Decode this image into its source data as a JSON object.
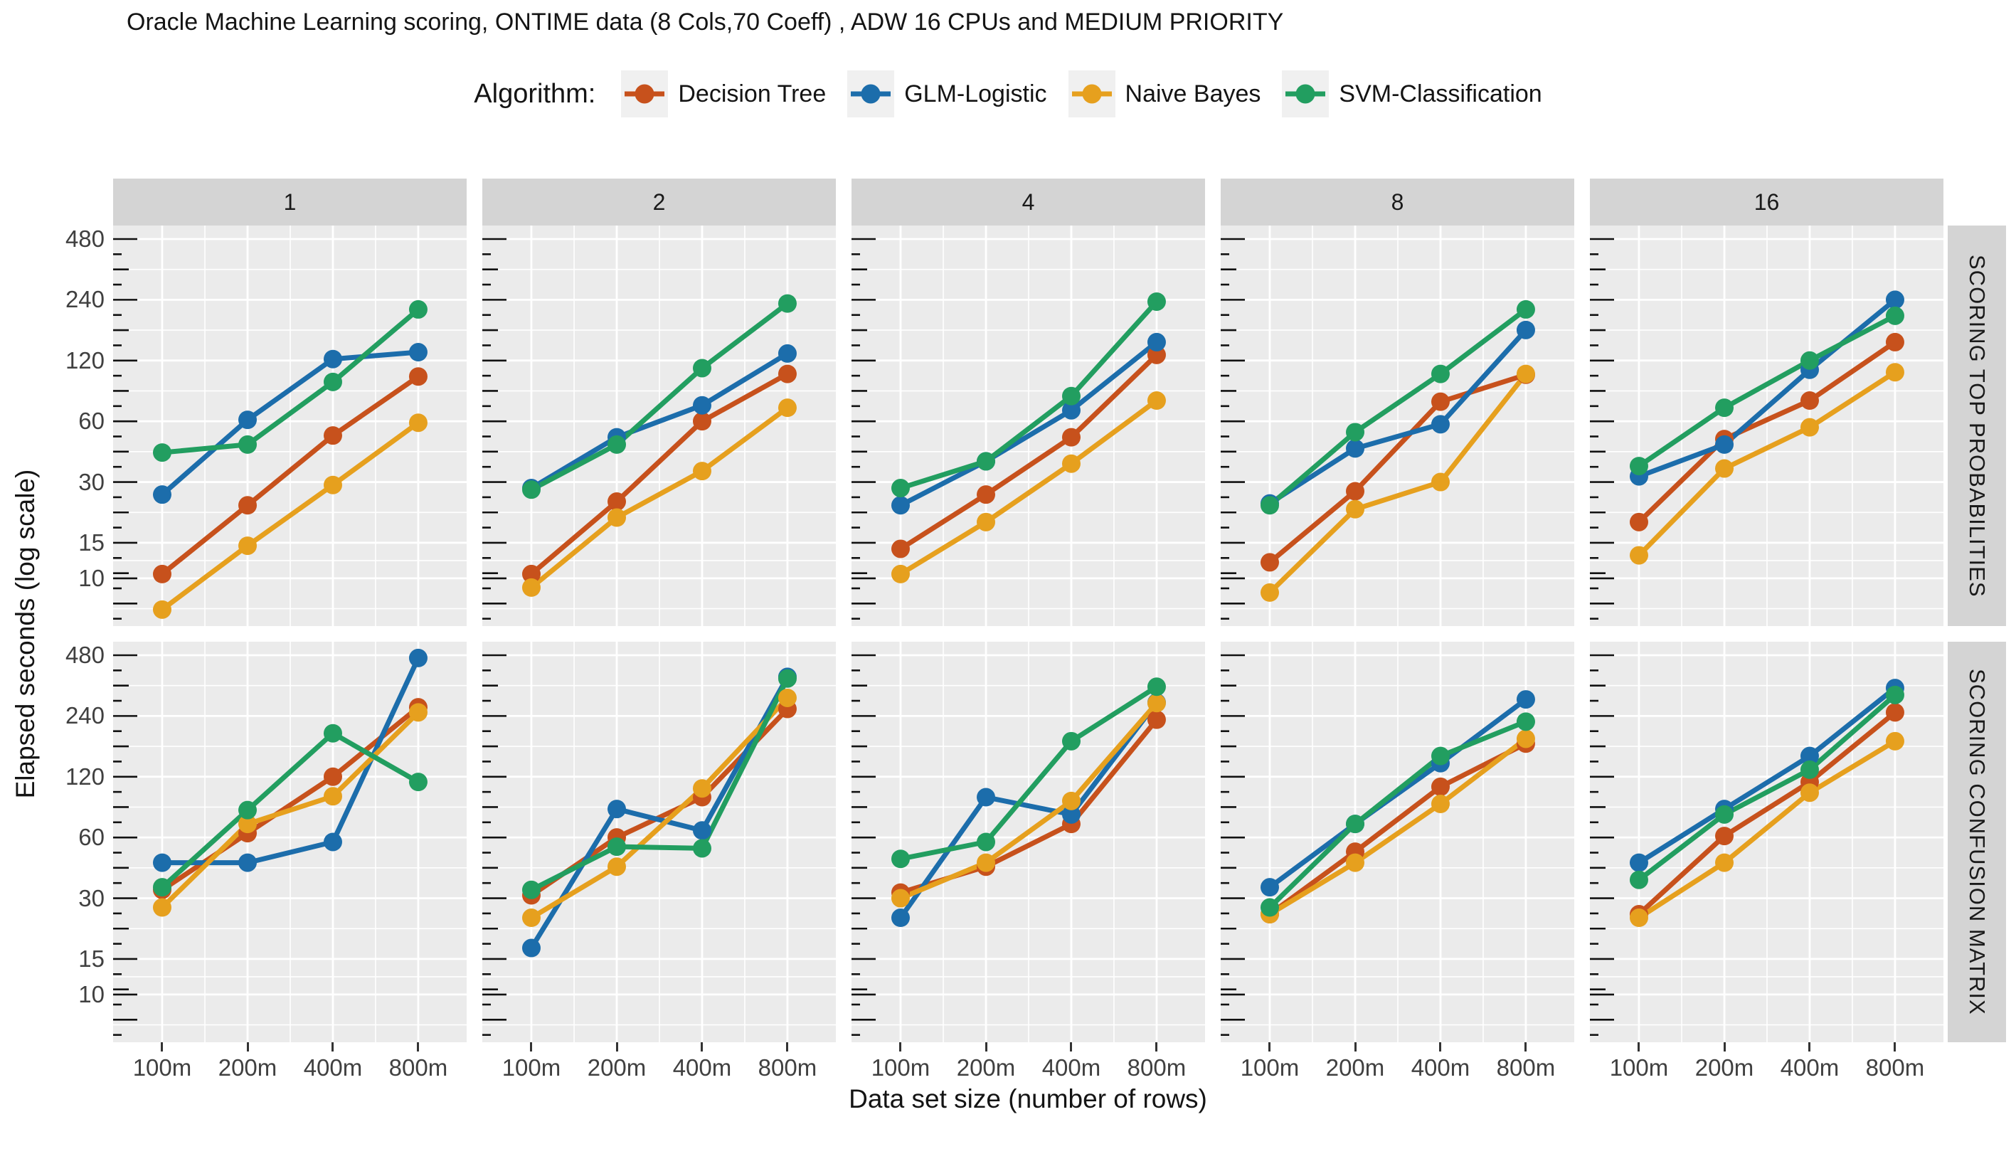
{
  "title": "Oracle Machine Learning scoring, ONTIME data (8 Cols,70 Coeff) , ADW 16 CPUs and MEDIUM PRIORITY",
  "legend": {
    "label": "Algorithm:",
    "items": [
      {
        "name": "Decision Tree",
        "color": "#C7511C"
      },
      {
        "name": "GLM-Logistic",
        "color": "#1C6DAB"
      },
      {
        "name": "Naive Bayes",
        "color": "#E6A01E"
      },
      {
        "name": "SVM-Classification",
        "color": "#229E60"
      }
    ]
  },
  "axes": {
    "x": {
      "title": "Data set size (number of rows)",
      "ticks": [
        "100m",
        "200m",
        "400m",
        "800m"
      ]
    },
    "y": {
      "title": "Elapsed seconds (log scale)",
      "ticks": [
        "480",
        "240",
        "120",
        "60",
        "30",
        "15",
        "10"
      ]
    }
  },
  "facets": {
    "columns": [
      "1",
      "2",
      "4",
      "8",
      "16"
    ],
    "rows": [
      "SCORING TOP PROBABILITIES",
      "SCORING CONFUSION MATRIX"
    ]
  },
  "theme": {
    "panel_background": "#ebebeb",
    "strip_background": "#d4d4d4",
    "gridline_color": "#ffffff",
    "tick_color": "#1a1a1a"
  },
  "chart_data": {
    "type": "line",
    "log_scale_y": true,
    "title": "Oracle Machine Learning scoring, ONTIME data (8 Cols,70 Coeff) , ADW 16 CPUs and MEDIUM PRIORITY",
    "xlabel": "Data set size (number of rows)",
    "ylabel": "Elapsed seconds (log scale)",
    "x_categories": [
      "100m",
      "200m",
      "400m",
      "800m"
    ],
    "y_breaks": [
      480,
      240,
      120,
      60,
      30,
      15,
      10
    ],
    "y_minor_breaks": [
      339.41,
      169.71,
      84.85,
      42.43,
      21.21,
      12.25,
      7.07
    ],
    "ylim": [
      5.8,
      560
    ],
    "legend_position": "top",
    "grid": true,
    "facet_columns": [
      "1",
      "2",
      "4",
      "8",
      "16"
    ],
    "facet_rows": [
      "SCORING TOP PROBABILITIES",
      "SCORING CONFUSION MATRIX"
    ],
    "series_names": [
      "Decision Tree",
      "GLM-Logistic",
      "Naive Bayes",
      "SVM-Classification"
    ],
    "series_colors": [
      "#C7511C",
      "#1C6DAB",
      "#E6A01E",
      "#229E60"
    ],
    "panels": [
      {
        "row": "SCORING TOP PROBABILITIES",
        "col": "1",
        "values": [
          [
            10.5,
            23,
            51,
            100
          ],
          [
            26,
            61,
            122,
            132
          ],
          [
            7,
            14.5,
            29,
            59
          ],
          [
            42,
            46,
            94,
            215
          ]
        ]
      },
      {
        "row": "SCORING TOP PROBABILITIES",
        "col": "2",
        "values": [
          [
            10.5,
            24,
            60,
            103
          ],
          [
            28,
            50,
            72,
            130
          ],
          [
            9,
            20,
            34,
            70
          ],
          [
            27.5,
            46,
            110,
            230
          ]
        ]
      },
      {
        "row": "SCORING TOP PROBABILITIES",
        "col": "4",
        "values": [
          [
            14,
            26,
            50,
            128
          ],
          [
            23,
            38,
            68,
            148
          ],
          [
            10.5,
            19,
            37,
            76
          ],
          [
            28,
            38,
            80,
            235
          ]
        ]
      },
      {
        "row": "SCORING TOP PROBABILITIES",
        "col": "8",
        "values": [
          [
            12,
            27,
            75,
            102
          ],
          [
            23.5,
            44,
            58,
            170
          ],
          [
            8.5,
            22,
            30,
            103
          ],
          [
            23,
            53,
            103,
            215
          ]
        ]
      },
      {
        "row": "SCORING TOP PROBABILITIES",
        "col": "16",
        "values": [
          [
            19,
            49,
            76,
            148
          ],
          [
            32,
            46,
            108,
            240
          ],
          [
            13,
            35,
            56,
            105
          ],
          [
            36,
            70,
            120,
            200
          ]
        ]
      },
      {
        "row": "SCORING CONFUSION MATRIX",
        "col": "1",
        "values": [
          [
            33,
            63,
            120,
            265
          ],
          [
            45,
            45,
            57,
            465
          ],
          [
            27,
            70,
            96,
            250
          ],
          [
            34,
            82,
            197,
            113
          ]
        ]
      },
      {
        "row": "SCORING CONFUSION MATRIX",
        "col": "2",
        "values": [
          [
            31,
            60,
            95,
            260
          ],
          [
            17,
            83,
            65,
            375
          ],
          [
            24,
            43,
            105,
            295
          ],
          [
            33,
            54,
            53,
            368
          ]
        ]
      },
      {
        "row": "SCORING CONFUSION MATRIX",
        "col": "4",
        "values": [
          [
            32,
            43,
            70,
            230
          ],
          [
            24,
            95,
            78,
            280
          ],
          [
            30,
            45,
            91,
            278
          ],
          [
            47,
            57,
            180,
            335
          ]
        ]
      },
      {
        "row": "SCORING CONFUSION MATRIX",
        "col": "8",
        "values": [
          [
            25,
            51,
            107,
            175
          ],
          [
            34,
            70,
            140,
            290
          ],
          [
            25,
            45,
            88,
            185
          ],
          [
            27,
            70,
            152,
            225
          ]
        ]
      },
      {
        "row": "SCORING CONFUSION MATRIX",
        "col": "16",
        "values": [
          [
            25,
            61,
            113,
            250
          ],
          [
            45,
            83,
            152,
            330
          ],
          [
            24,
            45,
            100,
            180
          ],
          [
            37,
            78,
            130,
            305
          ]
        ]
      }
    ]
  }
}
